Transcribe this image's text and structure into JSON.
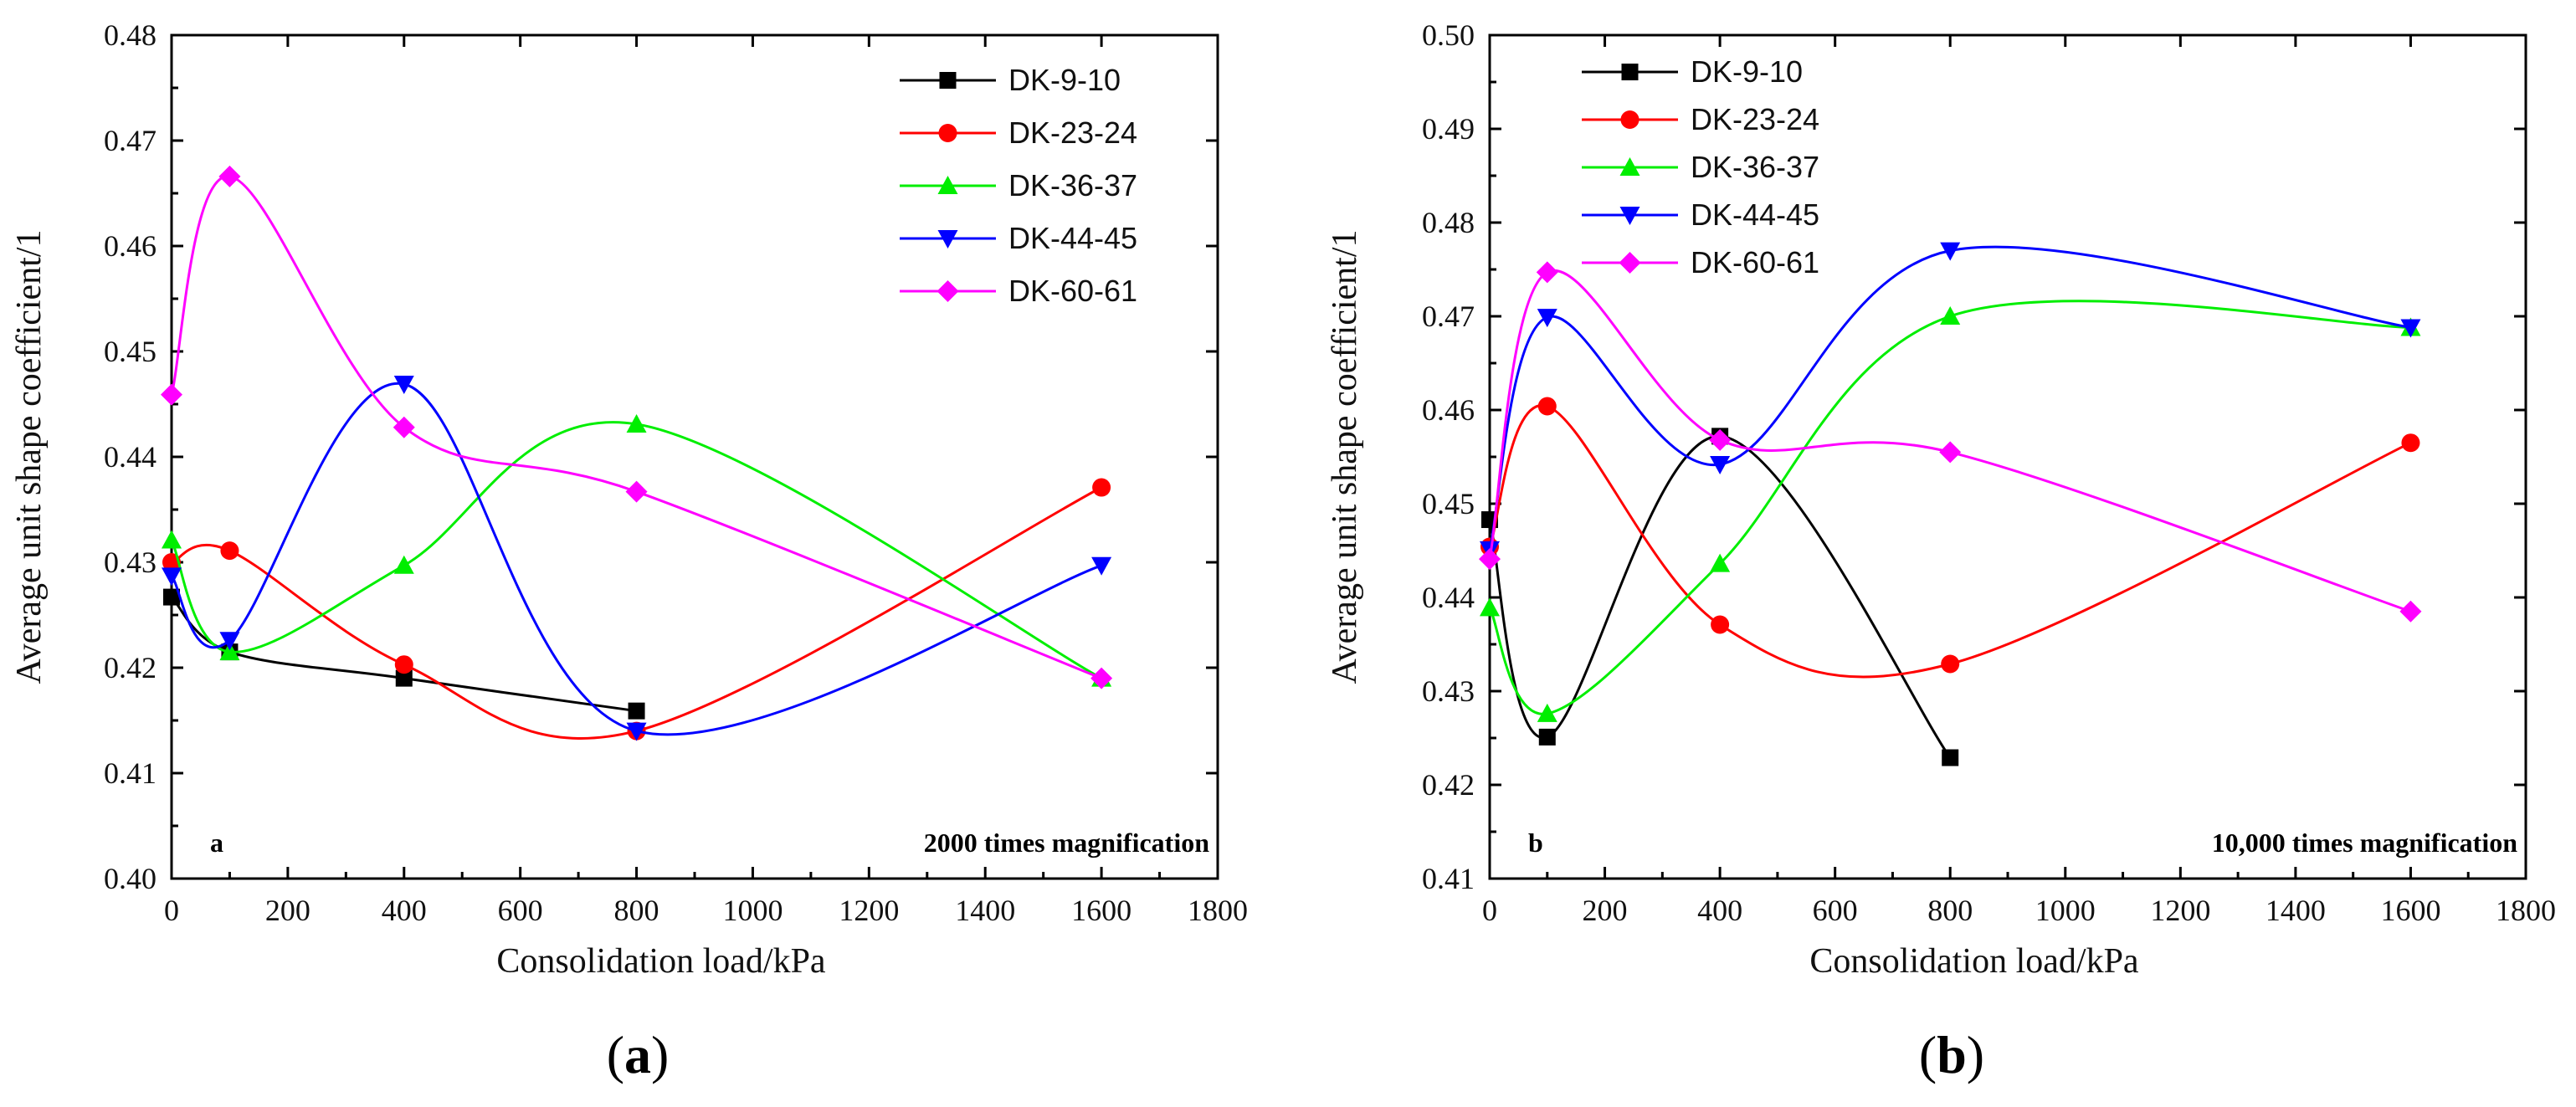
{
  "chart_data": [
    {
      "type": "line",
      "panel_label": "a",
      "annotation": "2000 times magnification",
      "caption": {
        "open": "(",
        "letter": "a",
        "close": ")"
      },
      "xlabel": "Consolidation load/kPa",
      "ylabel": "Average unit shape coefficient/1",
      "xlim": [
        0,
        1800
      ],
      "ylim": [
        0.4,
        0.48
      ],
      "xticks": [
        0,
        200,
        400,
        600,
        800,
        1000,
        1200,
        1400,
        1600,
        1800
      ],
      "yticks": [
        "0.40",
        "0.41",
        "0.42",
        "0.43",
        "0.44",
        "0.45",
        "0.46",
        "0.47",
        "0.48"
      ],
      "legend_position": "top-right",
      "series": [
        {
          "name": "DK-9-10",
          "color": "#000000",
          "marker": "square",
          "x": [
            0,
            100,
            400,
            800
          ],
          "y": [
            0.4267,
            0.4215,
            0.419,
            0.4159
          ]
        },
        {
          "name": "DK-23-24",
          "color": "#ff0000",
          "marker": "circle",
          "x": [
            0,
            100,
            400,
            800,
            1600
          ],
          "y": [
            0.43,
            0.4311,
            0.4203,
            0.414,
            0.4371
          ]
        },
        {
          "name": "DK-36-37",
          "color": "#00ee00",
          "marker": "triangle-up",
          "x": [
            0,
            100,
            400,
            800,
            1600
          ],
          "y": [
            0.4321,
            0.4215,
            0.4297,
            0.4431,
            0.419
          ]
        },
        {
          "name": "DK-44-45",
          "color": "#0000ff",
          "marker": "triangle-down",
          "x": [
            0,
            100,
            400,
            800,
            1600
          ],
          "y": [
            0.4287,
            0.4226,
            0.4469,
            0.414,
            0.4297
          ]
        },
        {
          "name": "DK-60-61",
          "color": "#ff00ff",
          "marker": "diamond",
          "x": [
            0,
            100,
            400,
            800,
            1600
          ],
          "y": [
            0.4459,
            0.4666,
            0.4428,
            0.4367,
            0.419
          ]
        }
      ]
    },
    {
      "type": "line",
      "panel_label": "b",
      "annotation": "10,000 times magnification",
      "caption": {
        "open": "(",
        "letter": "b",
        "close": ")"
      },
      "xlabel": "Consolidation load/kPa",
      "ylabel": "Average unit shape coefficient/1",
      "xlim": [
        0,
        1800
      ],
      "ylim": [
        0.41,
        0.5
      ],
      "xticks": [
        0,
        200,
        400,
        600,
        800,
        1000,
        1200,
        1400,
        1600,
        1800
      ],
      "yticks": [
        "0.41",
        "0.42",
        "0.43",
        "0.44",
        "0.45",
        "0.46",
        "0.47",
        "0.48",
        "0.49",
        "0.50"
      ],
      "legend_position": "top-left",
      "series": [
        {
          "name": "DK-9-10",
          "color": "#000000",
          "marker": "square",
          "x": [
            0,
            100,
            400,
            800
          ],
          "y": [
            0.4483,
            0.4251,
            0.4572,
            0.4229
          ]
        },
        {
          "name": "DK-23-24",
          "color": "#ff0000",
          "marker": "circle",
          "x": [
            0,
            100,
            400,
            800,
            1600
          ],
          "y": [
            0.4454,
            0.4604,
            0.4371,
            0.4329,
            0.4565
          ]
        },
        {
          "name": "DK-36-37",
          "color": "#00ee00",
          "marker": "triangle-up",
          "x": [
            0,
            100,
            400,
            800,
            1600
          ],
          "y": [
            0.4389,
            0.4276,
            0.4436,
            0.47,
            0.4688
          ]
        },
        {
          "name": "DK-44-45",
          "color": "#0000ff",
          "marker": "triangle-down",
          "x": [
            0,
            100,
            400,
            800,
            1600
          ],
          "y": [
            0.4451,
            0.4699,
            0.4542,
            0.477,
            0.4688
          ]
        },
        {
          "name": "DK-60-61",
          "color": "#ff00ff",
          "marker": "diamond",
          "x": [
            0,
            100,
            400,
            800,
            1600
          ],
          "y": [
            0.4441,
            0.4747,
            0.4568,
            0.4555,
            0.4385
          ]
        }
      ]
    }
  ]
}
